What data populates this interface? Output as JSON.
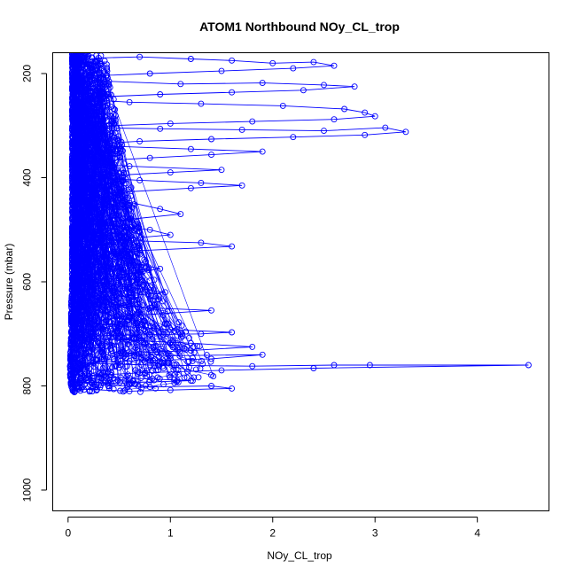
{
  "chart_data": {
    "type": "scatter",
    "title": "ATOM1 Northbound NOy_CL_trop",
    "xlabel": "NOy_CL_trop",
    "ylabel": "Pressure (mbar)",
    "xlim": [
      -0.15,
      4.7
    ],
    "ylim": [
      1040,
      160
    ],
    "y_reversed": true,
    "x_ticks": [
      0,
      1,
      2,
      3,
      4
    ],
    "y_ticks": [
      200,
      400,
      600,
      800,
      1000
    ],
    "grid": false,
    "legend": "none",
    "series": [
      {
        "color": "#0000ff",
        "marker": "open-circle",
        "connected": true,
        "points": [
          [
            0.05,
            160
          ],
          [
            0.12,
            175
          ],
          [
            0.3,
            170
          ],
          [
            0.7,
            168
          ],
          [
            1.2,
            172
          ],
          [
            1.6,
            175
          ],
          [
            2.0,
            180
          ],
          [
            2.4,
            178
          ],
          [
            2.6,
            185
          ],
          [
            2.2,
            190
          ],
          [
            1.5,
            195
          ],
          [
            0.8,
            200
          ],
          [
            0.2,
            205
          ],
          [
            0.1,
            210
          ],
          [
            0.4,
            215
          ],
          [
            1.1,
            220
          ],
          [
            1.9,
            218
          ],
          [
            2.5,
            222
          ],
          [
            2.8,
            225
          ],
          [
            2.3,
            232
          ],
          [
            1.6,
            236
          ],
          [
            0.9,
            240
          ],
          [
            0.3,
            245
          ],
          [
            0.15,
            250
          ],
          [
            0.6,
            255
          ],
          [
            1.3,
            258
          ],
          [
            2.1,
            262
          ],
          [
            2.7,
            268
          ],
          [
            2.9,
            275
          ],
          [
            3.0,
            282
          ],
          [
            2.6,
            288
          ],
          [
            1.8,
            292
          ],
          [
            1.0,
            296
          ],
          [
            0.4,
            300
          ],
          [
            0.2,
            304
          ],
          [
            0.9,
            306
          ],
          [
            1.7,
            308
          ],
          [
            2.5,
            310
          ],
          [
            3.1,
            304
          ],
          [
            3.3,
            312
          ],
          [
            2.9,
            318
          ],
          [
            2.2,
            322
          ],
          [
            1.4,
            326
          ],
          [
            0.7,
            330
          ],
          [
            0.25,
            335
          ],
          [
            0.5,
            340
          ],
          [
            1.2,
            345
          ],
          [
            1.9,
            350
          ],
          [
            1.4,
            356
          ],
          [
            0.8,
            362
          ],
          [
            0.3,
            368
          ],
          [
            0.15,
            372
          ],
          [
            0.6,
            378
          ],
          [
            1.5,
            385
          ],
          [
            1.0,
            390
          ],
          [
            0.4,
            396
          ],
          [
            0.2,
            400
          ],
          [
            0.7,
            405
          ],
          [
            1.3,
            410
          ],
          [
            1.7,
            415
          ],
          [
            1.2,
            420
          ],
          [
            0.5,
            428
          ],
          [
            0.25,
            435
          ],
          [
            0.55,
            445
          ],
          [
            0.9,
            460
          ],
          [
            1.1,
            470
          ],
          [
            0.6,
            480
          ],
          [
            0.3,
            490
          ],
          [
            0.8,
            500
          ],
          [
            1.0,
            510
          ],
          [
            0.4,
            520
          ],
          [
            1.3,
            525
          ],
          [
            1.6,
            532
          ],
          [
            0.7,
            540
          ],
          [
            0.3,
            550
          ],
          [
            0.55,
            560
          ],
          [
            0.9,
            575
          ],
          [
            0.4,
            590
          ],
          [
            0.2,
            600
          ],
          [
            0.6,
            610
          ],
          [
            0.95,
            620
          ],
          [
            0.45,
            630
          ],
          [
            0.25,
            640
          ],
          [
            0.8,
            650
          ],
          [
            1.4,
            655
          ],
          [
            0.6,
            665
          ],
          [
            0.3,
            675
          ],
          [
            0.5,
            685
          ],
          [
            1.0,
            692
          ],
          [
            1.6,
            697
          ],
          [
            1.3,
            700
          ],
          [
            0.4,
            703
          ],
          [
            0.1,
            706
          ],
          [
            0.6,
            712
          ],
          [
            1.2,
            718
          ],
          [
            1.8,
            725
          ],
          [
            1.2,
            732
          ],
          [
            0.5,
            738
          ],
          [
            1.0,
            742
          ],
          [
            1.9,
            740
          ],
          [
            1.4,
            748
          ],
          [
            0.6,
            752
          ],
          [
            0.1,
            756
          ],
          [
            0.8,
            760
          ],
          [
            1.8,
            762
          ],
          [
            2.6,
            760
          ],
          [
            2.95,
            760
          ],
          [
            4.5,
            760
          ],
          [
            2.4,
            766
          ],
          [
            1.5,
            770
          ],
          [
            0.7,
            775
          ],
          [
            0.2,
            780
          ],
          [
            0.6,
            785
          ],
          [
            1.2,
            790
          ],
          [
            0.4,
            795
          ],
          [
            0.05,
            792
          ],
          [
            0.3,
            798
          ],
          [
            0.8,
            802
          ],
          [
            1.4,
            800
          ],
          [
            1.6,
            805
          ],
          [
            1.0,
            808
          ],
          [
            0.6,
            810
          ],
          [
            0.1,
            806
          ]
        ]
      }
    ],
    "bulk_band": {
      "color": "#0000ff",
      "profile": [
        [
          160,
          0.04,
          0.35
        ],
        [
          200,
          0.04,
          0.4
        ],
        [
          250,
          0.04,
          0.45
        ],
        [
          300,
          0.04,
          0.48
        ],
        [
          350,
          0.04,
          0.55
        ],
        [
          400,
          0.04,
          0.6
        ],
        [
          450,
          0.04,
          0.65
        ],
        [
          500,
          0.04,
          0.7
        ],
        [
          550,
          0.04,
          0.75
        ],
        [
          600,
          0.04,
          0.85
        ],
        [
          650,
          0.03,
          0.95
        ],
        [
          700,
          0.03,
          1.2
        ],
        [
          750,
          0.02,
          1.4
        ],
        [
          780,
          0.02,
          1.5
        ],
        [
          800,
          0.03,
          1.0
        ],
        [
          812,
          0.05,
          0.8
        ]
      ]
    }
  }
}
